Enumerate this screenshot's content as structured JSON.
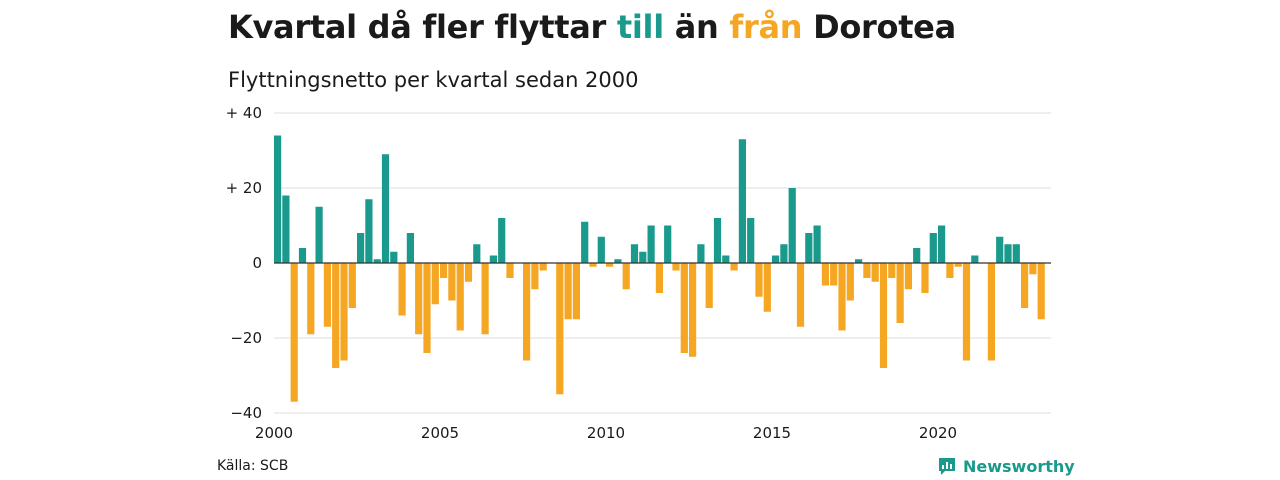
{
  "title": {
    "part1": "Kvartal då fler flyttar ",
    "highlight_in": "till",
    "part2": " än ",
    "highlight_out": "från",
    "part3": " Dorotea"
  },
  "subtitle": "Flyttningsnetto per kvartal sedan 2000",
  "source": "Källa: SCB",
  "brand": {
    "name": "Newsworthy",
    "icon": "newsworthy-logo-icon"
  },
  "colors": {
    "positive": "#1a9a8c",
    "negative": "#f5a623",
    "grid": "#dddddd",
    "baseline": "#333333"
  },
  "chart_data": {
    "type": "bar",
    "title": "Kvartal då fler flyttar till än från Dorotea",
    "subtitle": "Flyttningsnetto per kvartal sedan 2000",
    "x_start_year": 2000,
    "periods_per_year": 4,
    "x_ticks": [
      2000,
      2005,
      2010,
      2015,
      2020
    ],
    "y_ticks": [
      {
        "value": 40,
        "label": "+ 40"
      },
      {
        "value": 20,
        "label": "+ 20"
      },
      {
        "value": 0,
        "label": "0"
      },
      {
        "value": -20,
        "label": "−20"
      },
      {
        "value": -40,
        "label": "−40"
      }
    ],
    "ylim": [
      -40,
      40
    ],
    "grid": true,
    "values": [
      34,
      18,
      -37,
      4,
      -19,
      15,
      -17,
      -28,
      -26,
      -12,
      8,
      17,
      1,
      29,
      3,
      -14,
      8,
      -19,
      -24,
      -11,
      -4,
      -10,
      -18,
      -5,
      5,
      -19,
      2,
      12,
      -4,
      0,
      -26,
      -7,
      -2,
      0,
      -35,
      -15,
      -15,
      11,
      -1,
      7,
      -1,
      1,
      -7,
      5,
      3,
      10,
      -8,
      10,
      -2,
      -24,
      -25,
      5,
      -12,
      12,
      2,
      -2,
      33,
      12,
      -9,
      -13,
      2,
      5,
      20,
      -17,
      8,
      10,
      -6,
      -6,
      -18,
      -10,
      1,
      -4,
      -5,
      -28,
      -4,
      -16,
      -7,
      4,
      -8,
      8,
      10,
      -4,
      -1,
      -26,
      2,
      0,
      -26,
      7,
      5,
      5,
      -12,
      -3,
      -15
    ]
  }
}
